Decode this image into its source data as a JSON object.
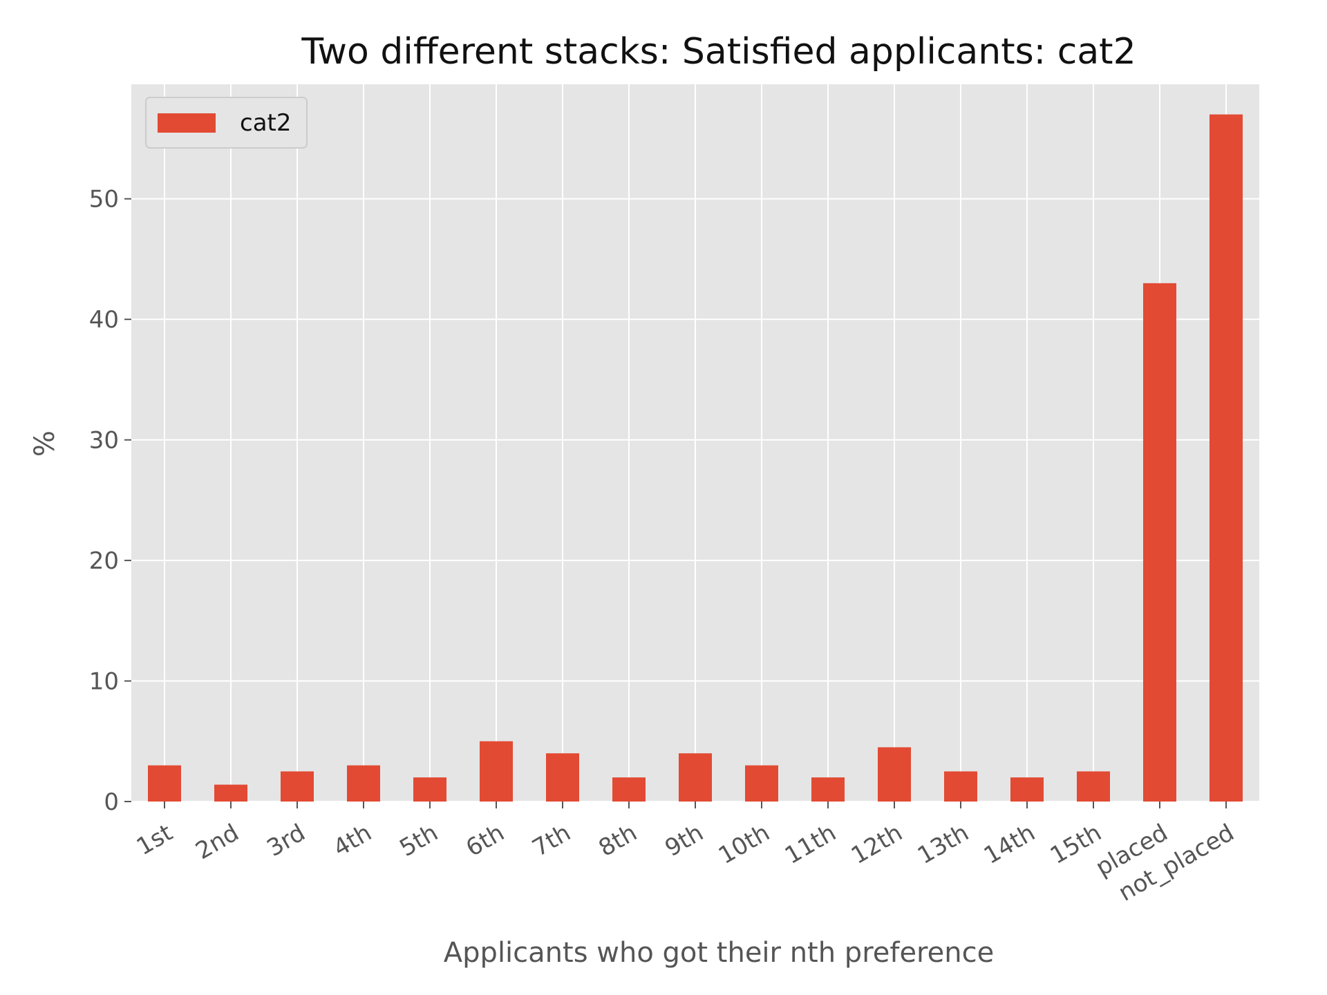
{
  "chart_data": {
    "type": "bar",
    "title": "Two different stacks: Satisfied applicants: cat2",
    "xlabel": "Applicants who got their nth preference",
    "ylabel": "%",
    "categories": [
      "1st",
      "2nd",
      "3rd",
      "4th",
      "5th",
      "6th",
      "7th",
      "8th",
      "9th",
      "10th",
      "11th",
      "12th",
      "13th",
      "14th",
      "15th",
      "placed",
      "not_placed"
    ],
    "series": [
      {
        "name": "cat2",
        "color": "#E24A33",
        "values": [
          3.0,
          1.4,
          2.5,
          3.0,
          2.0,
          5.0,
          4.0,
          2.0,
          4.0,
          3.0,
          2.0,
          4.5,
          2.5,
          2.0,
          2.5,
          43.0,
          57.0
        ]
      }
    ],
    "ylim": [
      0,
      59.5
    ],
    "yticks": [
      0,
      10,
      20,
      30,
      40,
      50
    ],
    "grid": true,
    "legend_position": "top-left",
    "colors": {
      "panel": "#E5E5E5",
      "grid": "#FFFFFF",
      "tick_text": "#555555"
    }
  }
}
